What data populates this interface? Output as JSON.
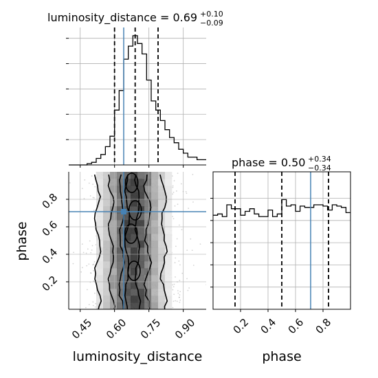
{
  "chart_data": {
    "type": "corner",
    "parameters": [
      "luminosity_distance",
      "phase"
    ],
    "grid": true,
    "panels": {
      "luminosity_distance_hist": {
        "type": "histogram",
        "title": {
          "main": "luminosity_distance = 0.69",
          "sup": "+0.10",
          "sub": "−0.09"
        },
        "x_range": [
          0.4,
          1.0
        ],
        "y_max": 1.0,
        "bin_edges": [
          0.4,
          0.42,
          0.44,
          0.46,
          0.48,
          0.5,
          0.52,
          0.54,
          0.56,
          0.58,
          0.6,
          0.62,
          0.64,
          0.66,
          0.68,
          0.7,
          0.72,
          0.74,
          0.76,
          0.78,
          0.8,
          0.82,
          0.84,
          0.86,
          0.88,
          0.9,
          0.92,
          0.94,
          0.96,
          0.98,
          1.0
        ],
        "counts": [
          0.0,
          0.0,
          0.0,
          0.0,
          0.01,
          0.02,
          0.05,
          0.08,
          0.14,
          0.22,
          0.42,
          0.57,
          0.81,
          0.91,
          0.99,
          0.93,
          0.85,
          0.65,
          0.49,
          0.42,
          0.34,
          0.27,
          0.21,
          0.17,
          0.12,
          0.09,
          0.06,
          0.06,
          0.04,
          0.04
        ],
        "quantiles": [
          0.6,
          0.69,
          0.79
        ],
        "truth": 0.64
      },
      "phase_hist": {
        "type": "histogram",
        "title": {
          "main": "phase = 0.50",
          "sup": "+0.34",
          "sub": "−0.34"
        },
        "x_range": [
          0.0,
          1.0
        ],
        "y_max": 1.0,
        "bin_edges": [
          0.0,
          0.033,
          0.067,
          0.1,
          0.133,
          0.167,
          0.2,
          0.233,
          0.267,
          0.3,
          0.333,
          0.367,
          0.4,
          0.433,
          0.467,
          0.5,
          0.533,
          0.567,
          0.6,
          0.633,
          0.667,
          0.7,
          0.733,
          0.767,
          0.8,
          0.833,
          0.867,
          0.9,
          0.933,
          0.967,
          1.0
        ],
        "counts": [
          0.72,
          0.73,
          0.71,
          0.8,
          0.77,
          0.77,
          0.72,
          0.75,
          0.77,
          0.73,
          0.71,
          0.71,
          0.76,
          0.71,
          0.73,
          0.84,
          0.79,
          0.8,
          0.75,
          0.79,
          0.78,
          0.78,
          0.8,
          0.8,
          0.79,
          0.76,
          0.8,
          0.79,
          0.78,
          0.74
        ],
        "quantiles": [
          0.16,
          0.5,
          0.84
        ],
        "truth": 0.71
      },
      "joint": {
        "type": "2d-histogram-contour",
        "x_param": "luminosity_distance",
        "y_param": "phase",
        "x_range": [
          0.4,
          1.0
        ],
        "y_range": [
          0.0,
          1.0
        ],
        "truth": [
          0.64,
          0.71
        ]
      }
    },
    "axes": {
      "luminosity_distance": {
        "label": "luminosity_distance",
        "ticks": [
          0.45,
          0.6,
          0.75,
          0.9
        ],
        "tick_labels": [
          "0.45",
          "0.60",
          "0.75",
          "0.90"
        ]
      },
      "phase": {
        "label": "phase",
        "ticks": [
          0.2,
          0.4,
          0.6,
          0.8
        ],
        "tick_labels": [
          "0.2",
          "0.4",
          "0.6",
          "0.8"
        ]
      }
    },
    "colors": {
      "truth": "#4682b4",
      "hist": "#000000",
      "grid": "#b0b0b0",
      "scatter": "#808080"
    }
  }
}
